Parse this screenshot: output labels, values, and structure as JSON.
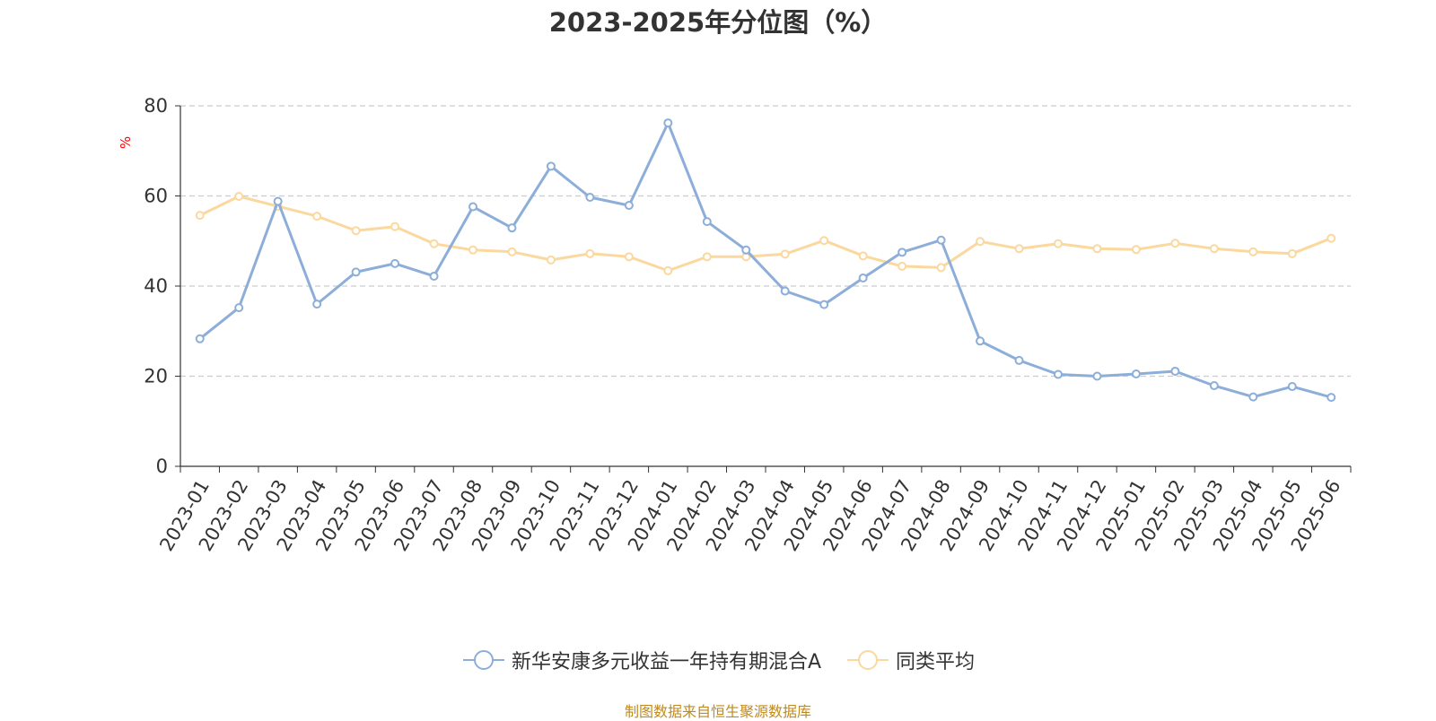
{
  "colors": {
    "series_a": "#8caed9",
    "series_b": "#fad89e",
    "grid": "#cccccc",
    "axis": "#333333",
    "unit": "#ff0000",
    "source": "#c08a1e"
  },
  "chart_data": {
    "type": "line",
    "title": "2023-2025年分位图（%）",
    "ylabel": "%",
    "ylim": [
      0,
      80
    ],
    "yticks": [
      0,
      20,
      40,
      60,
      80
    ],
    "grid": true,
    "legend_position": "bottom",
    "categories": [
      "2023-01",
      "2023-02",
      "2023-03",
      "2023-04",
      "2023-05",
      "2023-06",
      "2023-07",
      "2023-08",
      "2023-09",
      "2023-10",
      "2023-11",
      "2023-12",
      "2024-01",
      "2024-02",
      "2024-03",
      "2024-04",
      "2024-05",
      "2024-06",
      "2024-07",
      "2024-08",
      "2024-09",
      "2024-10",
      "2024-11",
      "2024-12",
      "2025-01",
      "2025-02",
      "2025-03",
      "2025-04",
      "2025-05",
      "2025-06"
    ],
    "series": [
      {
        "name": "新华安康多元收益一年持有期混合A",
        "values": [
          28.3,
          35.2,
          58.8,
          36.0,
          43.1,
          45.0,
          42.2,
          57.6,
          52.9,
          66.6,
          59.7,
          57.9,
          76.2,
          54.3,
          48.0,
          38.9,
          35.9,
          41.8,
          47.5,
          50.2,
          27.8,
          23.5,
          20.4,
          20.0,
          20.5,
          21.1,
          17.9,
          15.4,
          17.7,
          15.3
        ]
      },
      {
        "name": "同类平均",
        "values": [
          55.7,
          59.9,
          57.7,
          55.5,
          52.3,
          53.2,
          49.4,
          48.0,
          47.6,
          45.8,
          47.2,
          46.5,
          43.4,
          46.5,
          46.5,
          47.1,
          50.1,
          46.7,
          44.4,
          44.1,
          49.9,
          48.3,
          49.4,
          48.3,
          48.1,
          49.5,
          48.3,
          47.6,
          47.2,
          50.6
        ]
      }
    ]
  },
  "footer": {
    "source": "制图数据来自恒生聚源数据库"
  }
}
